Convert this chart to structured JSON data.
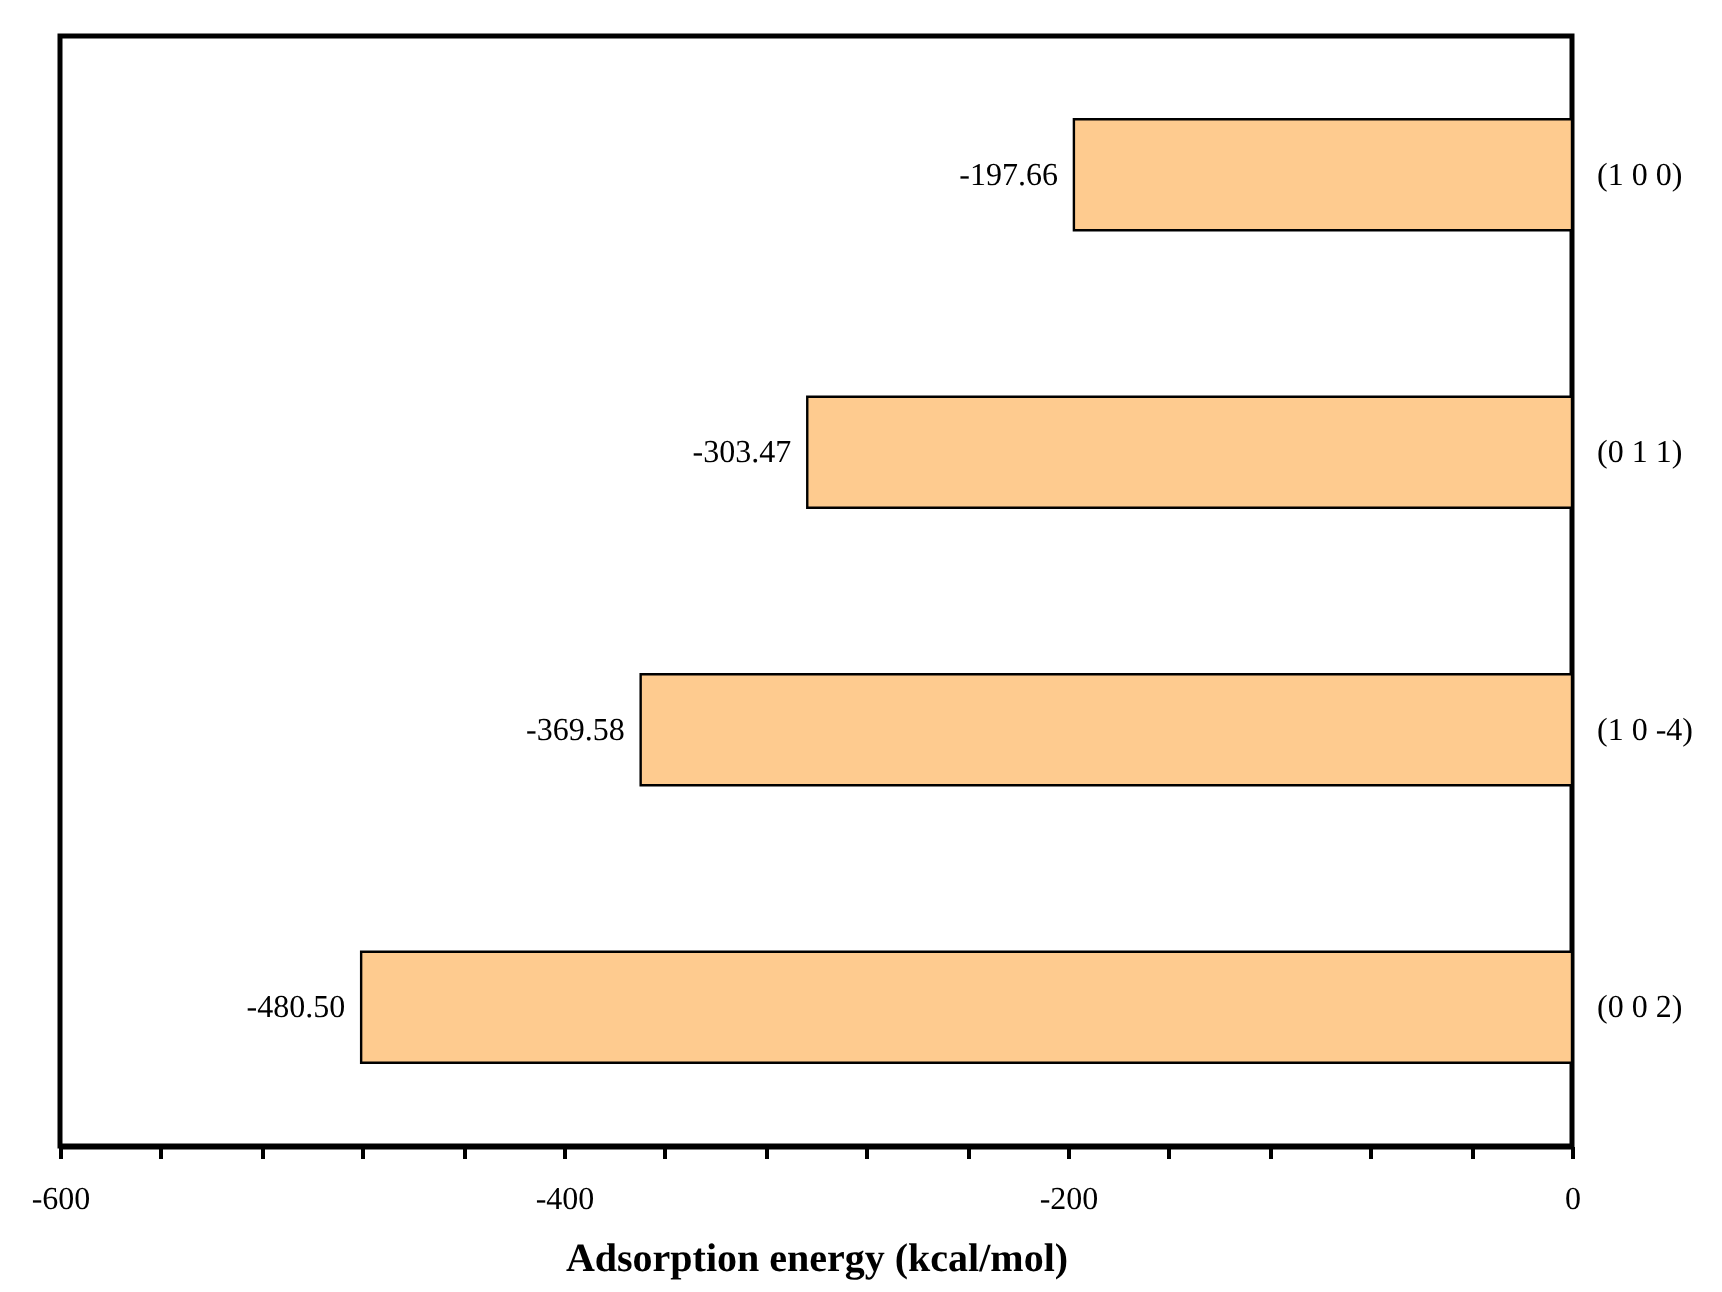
{
  "chart_data": {
    "type": "bar",
    "orientation": "horizontal",
    "xlabel": "Adsorption energy (kcal/mol)",
    "categories": [
      "(1 0 0)",
      "(0 1 1)",
      "(1 0 -4)",
      "(0 0 2)"
    ],
    "values": [
      -197.66,
      -303.47,
      -369.58,
      -480.5
    ],
    "value_labels": [
      "-197.66",
      "-303.47",
      "-369.58",
      "-480.50"
    ],
    "color": "#fecb8f",
    "xlim": [
      -600,
      0
    ],
    "xticks": [
      -600,
      {
        "value": -560,
        "label": null
      },
      {
        "value": -520,
        "label": null
      },
      {
        "value": -480,
        "label": null
      },
      {
        "value": -440,
        "label": null
      },
      -400,
      {
        "value": -360,
        "label": null
      },
      {
        "value": -320,
        "label": null
      },
      {
        "value": -280,
        "label": null
      },
      {
        "value": -240,
        "label": null
      },
      -200,
      {
        "value": -160,
        "label": null
      },
      {
        "value": -120,
        "label": null
      },
      {
        "value": -80,
        "label": null
      },
      {
        "value": -40,
        "label": null
      },
      0
    ],
    "grid": false
  }
}
